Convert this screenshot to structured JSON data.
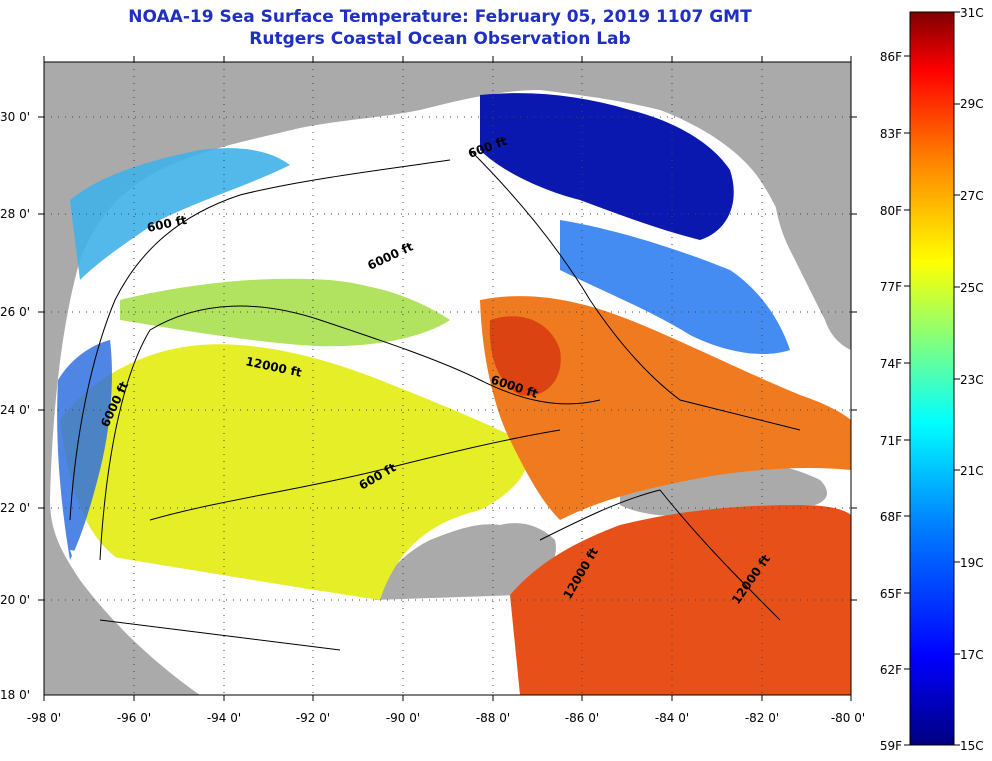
{
  "title": {
    "line1": "NOAA-19 Sea Surface Temperature:  February 05, 2019 1107 GMT",
    "line2": "Rutgers Coastal Ocean Observation Lab"
  },
  "map": {
    "lat_labels": [
      "30 0'",
      "28 0'",
      "26 0'",
      "24 0'",
      "22 0'",
      "20 0'",
      "18 0'"
    ],
    "lon_labels": [
      "-98 0'",
      "-96 0'",
      "-94 0'",
      "-92 0'",
      "-90 0'",
      "-88 0'",
      "-86 0'",
      "-84 0'",
      "-82 0'",
      "-80 0'"
    ],
    "contour_labels": [
      "600 ft",
      "6000 ft",
      "12000 ft",
      "6000 ft",
      "600 ft",
      "6000 ft",
      "600 ft",
      "12000 ft",
      "12000 ft"
    ],
    "colors": {
      "land": "#aaaaaa",
      "cloud": "#ffffff",
      "cold": "#0000aa",
      "cool": "#2080ff",
      "mild": "#40c0e0",
      "warm_green": "#b0e040",
      "yellow": "#f0e020",
      "orange": "#f08020",
      "red": "#e04010"
    }
  },
  "colorbar": {
    "celsius_labels": [
      "31C",
      "29C",
      "27C",
      "25C",
      "23C",
      "21C",
      "19C",
      "17C",
      "15C"
    ],
    "fahrenheit_labels": [
      "86F",
      "83F",
      "80F",
      "77F",
      "74F",
      "71F",
      "68F",
      "65F",
      "62F",
      "59F"
    ],
    "stops": [
      "#00007f",
      "#0000ff",
      "#0080ff",
      "#00ffff",
      "#80ff80",
      "#ffff00",
      "#ff8000",
      "#ff0000",
      "#7f0000"
    ]
  }
}
